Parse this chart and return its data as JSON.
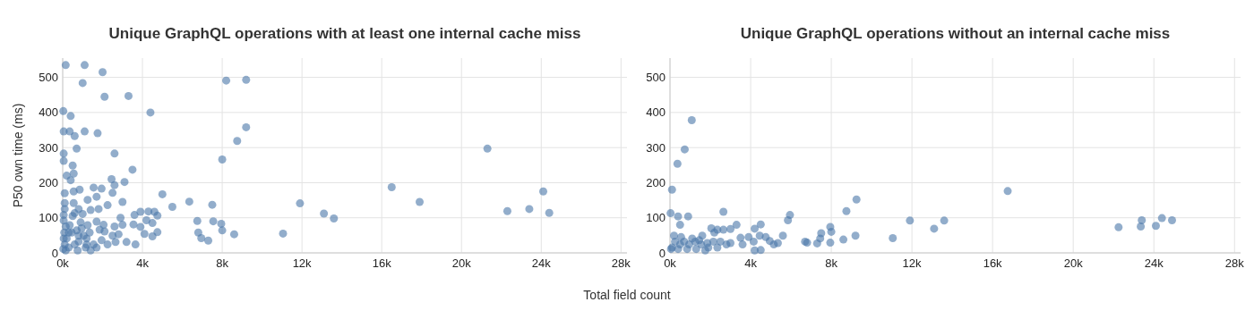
{
  "chart_data": [
    {
      "type": "scatter",
      "title": "Unique GraphQL operations with at least one internal cache miss",
      "xlabel": "Total field count",
      "ylabel": "P50 own time (ms)",
      "xlim": [
        0,
        28300
      ],
      "ylim": [
        0,
        555
      ],
      "xticks": [
        {
          "value": 0,
          "label": "0k"
        },
        {
          "value": 4000,
          "label": "4k"
        },
        {
          "value": 8000,
          "label": "8k"
        },
        {
          "value": 12000,
          "label": "12k"
        },
        {
          "value": 16000,
          "label": "16k"
        },
        {
          "value": 20000,
          "label": "20k"
        },
        {
          "value": 24000,
          "label": "24k"
        },
        {
          "value": 28000,
          "label": "28k"
        }
      ],
      "yticks": [
        0,
        100,
        200,
        300,
        400,
        500
      ],
      "grid": true,
      "marker": "circle",
      "series": [
        {
          "color": "#4a77a8",
          "x": [
            150,
            1100,
            2000,
            1000,
            2100,
            3300,
            4400,
            8200,
            9200,
            30,
            400,
            50,
            350,
            1100,
            1750,
            600,
            700,
            2600,
            50,
            50,
            8750,
            9200,
            8000,
            500,
            550,
            200,
            400,
            3500,
            2450,
            2600,
            3100,
            1550,
            1950,
            850,
            550,
            100,
            2500,
            5000,
            1700,
            1250,
            3000,
            6350,
            7500,
            11900,
            5500,
            2250,
            13100,
            13600,
            6750,
            7550,
            7950,
            8000,
            6800,
            6950,
            7300,
            8600,
            11050,
            3900,
            3600,
            4300,
            4600,
            4750,
            4500,
            3900,
            3550,
            4200,
            4750,
            4500,
            4100,
            3650,
            3200,
            2900,
            3000,
            2600,
            2500,
            2800,
            2650,
            2100,
            2050,
            1700,
            1400,
            1800,
            1000,
            800,
            550,
            600,
            100,
            100,
            150,
            450,
            800,
            1200,
            600,
            300,
            100,
            80,
            50,
            200,
            950,
            1350,
            1550,
            1950,
            2250,
            1150,
            750,
            150,
            350,
            900,
            1250,
            500,
            1200,
            1700,
            1850,
            700,
            1050,
            50,
            50,
            30,
            300,
            800,
            1400,
            16500,
            17900,
            21300,
            22300,
            23400,
            24100,
            24400
          ],
          "values": [
            535,
            535,
            515,
            484,
            445,
            447,
            400,
            491,
            493,
            404,
            390,
            346,
            346,
            346,
            341,
            333,
            297,
            283,
            283,
            262,
            319,
            358,
            266,
            249,
            226,
            220,
            207,
            237,
            210,
            193,
            202,
            186,
            183,
            180,
            175,
            170,
            171,
            167,
            160,
            151,
            145,
            146,
            137,
            141,
            131,
            136,
            112,
            98,
            91,
            90,
            83,
            64,
            58,
            42,
            35,
            53,
            55,
            117,
            108,
            118,
            117,
            106,
            85,
            74,
            81,
            93,
            59,
            47,
            54,
            24,
            31,
            100,
            80,
            75,
            49,
            53,
            31,
            61,
            80,
            89,
            122,
            125,
            111,
            125,
            142,
            113,
            125,
            142,
            75,
            58,
            49,
            41,
            24,
            15,
            24,
            58,
            92,
            41,
            70,
            58,
            24,
            36,
            24,
            15,
            7,
            7,
            79,
            87,
            79,
            105,
            24,
            15,
            66,
            64,
            49,
            108,
            41,
            11,
            58,
            32,
            7,
            187,
            145,
            297,
            119,
            125,
            175,
            114
          ]
        }
      ]
    },
    {
      "type": "scatter",
      "title": "Unique GraphQL operations without an internal cache miss",
      "xlim": [
        0,
        28300
      ],
      "ylim": [
        0,
        555
      ],
      "xticks": [
        {
          "value": 0,
          "label": "0k"
        },
        {
          "value": 4000,
          "label": "4k"
        },
        {
          "value": 8000,
          "label": "8k"
        },
        {
          "value": 12000,
          "label": "12k"
        },
        {
          "value": 16000,
          "label": "16k"
        },
        {
          "value": 20000,
          "label": "20k"
        },
        {
          "value": 24000,
          "label": "24k"
        },
        {
          "value": 28000,
          "label": "28k"
        }
      ],
      "yticks": [
        0,
        100,
        200,
        300,
        400,
        500
      ],
      "grid": true,
      "marker": "circle",
      "series": [
        {
          "color": "#4a77a8",
          "x": [
            1080,
            730,
            370,
            100,
            30,
            400,
            900,
            500,
            2650,
            5950,
            5850,
            9250,
            8750,
            7950,
            8000,
            7500,
            7450,
            7950,
            8600,
            9200,
            11050,
            11900,
            13100,
            13600,
            7300,
            6800,
            6700,
            5600,
            5350,
            5150,
            4950,
            4750,
            4500,
            4200,
            4450,
            4150,
            4500,
            4200,
            3900,
            3600,
            3500,
            3300,
            3000,
            2650,
            2350,
            2050,
            2200,
            2800,
            2500,
            2150,
            1900,
            1600,
            1550,
            1250,
            950,
            700,
            500,
            250,
            100,
            200,
            550,
            1100,
            1450,
            1850,
            50,
            400,
            850,
            1300,
            1750,
            2350,
            3000,
            16750,
            22250,
            23400,
            23350,
            24100,
            24400,
            24900
          ],
          "values": [
            378,
            295,
            254,
            180,
            113,
            104,
            104,
            80,
            117,
            108,
            93,
            152,
            119,
            74,
            60,
            56,
            41,
            29,
            38,
            49,
            42,
            92,
            69,
            92,
            27,
            29,
            32,
            49,
            28,
            24,
            34,
            45,
            81,
            69,
            49,
            32,
            8,
            7,
            45,
            24,
            43,
            80,
            68,
            66,
            66,
            70,
            58,
            24,
            32,
            32,
            15,
            49,
            24,
            32,
            24,
            32,
            24,
            32,
            15,
            49,
            45,
            41,
            36,
            28,
            11,
            11,
            11,
            11,
            7,
            15,
            28,
            176,
            73,
            93,
            75,
            77,
            99,
            93
          ]
        }
      ]
    }
  ]
}
